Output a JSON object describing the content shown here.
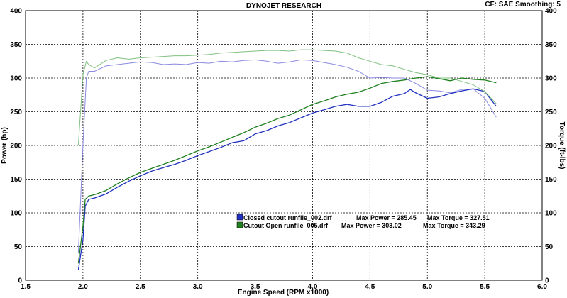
{
  "chart_data": {
    "type": "line",
    "title": "DYNOJET RESEARCH",
    "header_right": "CF: SAE  Smoothing: 5",
    "xlabel": "Engine Speed (RPM x1000)",
    "ylabel_left": "Power (hp)",
    "ylabel_right": "Torque (ft-lbs)",
    "xlim": [
      1.5,
      6.0
    ],
    "ylim": [
      0,
      400
    ],
    "x_ticks": [
      "1.5",
      "2.0",
      "2.5",
      "3.0",
      "3.5",
      "4.0",
      "4.5",
      "5.0",
      "5.5",
      "6.0"
    ],
    "y_ticks": [
      "0",
      "50",
      "100",
      "150",
      "200",
      "250",
      "300",
      "350",
      "400"
    ],
    "grid": true,
    "legend": [
      {
        "swatch_color": "#2030c0",
        "name": "Closed cutout runfile_002.drf",
        "power_label": "Max Power = 285.45",
        "torque_label": "Max Torque = 327.51"
      },
      {
        "swatch_color": "#208020",
        "name": "Cutout Open runfile_005.drf",
        "power_label": "Max Power = 303.02",
        "torque_label": "Max Torque = 343.29"
      }
    ],
    "series": [
      {
        "name": "Closed cutout runfile_002.drf",
        "measure": "power",
        "color": "#2030c0",
        "x": [
          1.96,
          2.0,
          2.02,
          2.05,
          2.1,
          2.2,
          2.3,
          2.4,
          2.5,
          2.6,
          2.7,
          2.8,
          2.9,
          3.0,
          3.1,
          3.2,
          3.3,
          3.4,
          3.5,
          3.6,
          3.7,
          3.8,
          3.9,
          4.0,
          4.1,
          4.2,
          4.3,
          4.4,
          4.5,
          4.6,
          4.7,
          4.8,
          4.85,
          4.9,
          5.0,
          5.1,
          5.2,
          5.3,
          5.4,
          5.5,
          5.6
        ],
        "y": [
          15,
          60,
          110,
          120,
          122,
          128,
          138,
          147,
          155,
          162,
          167,
          172,
          178,
          185,
          191,
          197,
          204,
          207,
          217,
          222,
          229,
          234,
          241,
          248,
          253,
          258,
          261,
          258,
          258,
          264,
          273,
          277,
          283,
          278,
          270,
          272,
          277,
          281,
          284,
          280,
          258
        ]
      },
      {
        "name": "Cutout Open runfile_005.drf",
        "measure": "power",
        "color": "#208020",
        "x": [
          1.96,
          2.0,
          2.02,
          2.05,
          2.1,
          2.2,
          2.3,
          2.4,
          2.5,
          2.6,
          2.7,
          2.8,
          2.9,
          3.0,
          3.1,
          3.2,
          3.3,
          3.4,
          3.5,
          3.6,
          3.7,
          3.8,
          3.9,
          4.0,
          4.1,
          4.2,
          4.3,
          4.4,
          4.5,
          4.6,
          4.7,
          4.8,
          4.9,
          5.0,
          5.1,
          5.2,
          5.3,
          5.4,
          5.5,
          5.6
        ],
        "y": [
          25,
          80,
          120,
          125,
          127,
          133,
          143,
          152,
          160,
          166,
          172,
          178,
          185,
          192,
          198,
          205,
          212,
          219,
          227,
          233,
          240,
          245,
          253,
          261,
          266,
          272,
          276,
          279,
          285,
          292,
          295,
          297,
          300,
          302,
          299,
          296,
          300,
          298,
          297,
          293
        ]
      },
      {
        "name": "Closed cutout runfile_002.drf",
        "measure": "torque",
        "color": "#8a8ae0",
        "x": [
          1.96,
          2.0,
          2.03,
          2.05,
          2.1,
          2.2,
          2.3,
          2.4,
          2.5,
          2.6,
          2.7,
          2.8,
          2.9,
          3.0,
          3.1,
          3.2,
          3.3,
          3.4,
          3.5,
          3.6,
          3.7,
          3.8,
          3.9,
          4.0,
          4.1,
          4.2,
          4.3,
          4.4,
          4.5,
          4.6,
          4.7,
          4.8,
          4.9,
          5.0,
          5.1,
          5.2,
          5.3,
          5.4,
          5.5,
          5.6
        ],
        "y": [
          40,
          200,
          300,
          310,
          310,
          318,
          320,
          322,
          324,
          323,
          320,
          321,
          320,
          323,
          322,
          325,
          324,
          326,
          327,
          325,
          322,
          324,
          327,
          326,
          323,
          320,
          316,
          310,
          300,
          301,
          300,
          300,
          292,
          282,
          281,
          278,
          283,
          284,
          270,
          242
        ]
      },
      {
        "name": "Cutout Open runfile_005.drf",
        "measure": "torque",
        "color": "#80c080",
        "x": [
          1.96,
          2.0,
          2.03,
          2.05,
          2.1,
          2.2,
          2.3,
          2.4,
          2.5,
          2.6,
          2.7,
          2.8,
          2.9,
          3.0,
          3.1,
          3.2,
          3.3,
          3.4,
          3.5,
          3.6,
          3.7,
          3.8,
          3.9,
          4.0,
          4.1,
          4.2,
          4.3,
          4.4,
          4.5,
          4.6,
          4.7,
          4.8,
          4.9,
          5.0,
          5.1,
          5.2,
          5.3,
          5.4,
          5.5,
          5.6
        ],
        "y": [
          200,
          305,
          325,
          320,
          315,
          326,
          330,
          328,
          330,
          331,
          332,
          333,
          333,
          334,
          335,
          337,
          338,
          339,
          340,
          341,
          341,
          340,
          342,
          342,
          341,
          340,
          337,
          330,
          325,
          320,
          318,
          313,
          308,
          305,
          300,
          300,
          295,
          290,
          280,
          262
        ]
      }
    ]
  }
}
